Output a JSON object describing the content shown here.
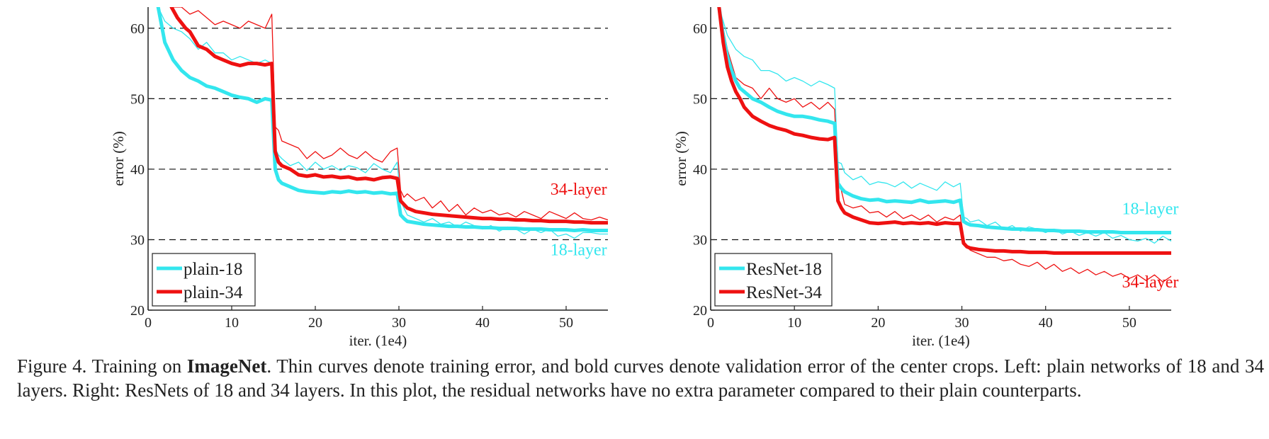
{
  "colors": {
    "cyan": "#33e6ee",
    "red": "#ee1111",
    "grid": "#111111"
  },
  "caption": {
    "figure_label": "Figure 4.",
    "part1": "Training on",
    "bold": "ImageNet",
    "rest": ". Thin curves denote training error, and bold curves denote validation error of the center crops. Left: plain networks of 18 and 34 layers. Right: ResNets of 18 and 34 layers. In this plot, the residual networks have no extra parameter compared to their plain counterparts."
  },
  "chart_data": [
    {
      "type": "line",
      "xlabel": "iter. (1e4)",
      "ylabel": "error (%)",
      "xlim": [
        0,
        55
      ],
      "ylim": [
        20,
        63
      ],
      "xticks": [
        0,
        10,
        20,
        30,
        40,
        50
      ],
      "yticks": [
        20,
        30,
        40,
        50,
        60
      ],
      "grid": "dashed horizontal",
      "legend": {
        "placement": "bottom-left",
        "entries": [
          "plain-18",
          "plain-34"
        ]
      },
      "annotations": [
        {
          "text": "34-layer",
          "x": 51.5,
          "y": 36.4,
          "color": "red"
        },
        {
          "text": "18-layer",
          "x": 51.5,
          "y": 27.8,
          "color": "cyan"
        }
      ],
      "series": [
        {
          "name": "plain-18",
          "kind": "validation",
          "color": "cyan",
          "width": 5,
          "x": [
            1.2,
            2,
            3,
            4,
            5,
            6,
            7,
            8,
            9,
            10,
            11,
            12,
            13,
            14,
            14.8,
            15.2,
            15.6,
            16,
            17,
            18,
            19,
            20,
            21,
            22,
            23,
            24,
            25,
            26,
            27,
            28,
            29,
            29.8,
            30.2,
            30.6,
            31,
            32,
            33,
            34,
            35,
            36,
            37,
            38,
            39,
            40,
            41,
            42,
            43,
            44,
            45,
            46,
            47,
            48,
            49,
            50,
            51,
            52,
            53,
            54,
            55
          ],
          "y": [
            63,
            58,
            55.5,
            54,
            53,
            52.5,
            51.8,
            51.5,
            51,
            50.5,
            50.2,
            50,
            49.5,
            50,
            49.8,
            40,
            38.5,
            38,
            37.5,
            37,
            36.8,
            36.7,
            36.6,
            36.8,
            36.7,
            36.9,
            36.7,
            36.8,
            36.6,
            36.7,
            36.5,
            36.6,
            33.5,
            33.0,
            32.6,
            32.4,
            32.2,
            32.1,
            32.0,
            31.9,
            31.9,
            31.8,
            31.8,
            31.7,
            31.7,
            31.6,
            31.6,
            31.6,
            31.5,
            31.5,
            31.5,
            31.4,
            31.4,
            31.4,
            31.3,
            31.4,
            31.3,
            31.3,
            31.3
          ]
        },
        {
          "name": "plain-34",
          "kind": "validation",
          "color": "red",
          "width": 5,
          "x": [
            2.8,
            3.5,
            4.5,
            5,
            6,
            7,
            8,
            9,
            10,
            11,
            12,
            13,
            14,
            14.8,
            15.2,
            15.6,
            16,
            17,
            18,
            19,
            20,
            21,
            22,
            23,
            24,
            25,
            26,
            27,
            28,
            29,
            29.8,
            30.2,
            30.6,
            31,
            32,
            33,
            34,
            35,
            36,
            37,
            38,
            39,
            40,
            41,
            42,
            43,
            44,
            45,
            46,
            47,
            48,
            49,
            50,
            51,
            52,
            53,
            54,
            55
          ],
          "y": [
            63,
            61.5,
            60,
            59.5,
            57.5,
            57,
            56,
            55.5,
            55,
            54.7,
            55,
            55,
            54.8,
            55,
            42.5,
            41,
            40.5,
            40,
            39.2,
            39.0,
            39.2,
            38.9,
            39.0,
            38.8,
            38.9,
            38.6,
            38.7,
            38.5,
            38.8,
            38.9,
            38.7,
            35.5,
            35.0,
            34.5,
            34.0,
            33.8,
            33.6,
            33.5,
            33.4,
            33.3,
            33.2,
            33.1,
            33.0,
            33.0,
            32.9,
            32.9,
            32.8,
            32.8,
            32.7,
            32.7,
            32.6,
            32.6,
            32.6,
            32.5,
            32.5,
            32.4,
            32.4,
            32.4
          ]
        },
        {
          "name": "plain-18",
          "kind": "training",
          "color": "cyan",
          "width": 1.3,
          "x": [
            1.2,
            2,
            3,
            4,
            5,
            6,
            7,
            8,
            9,
            10,
            11,
            12,
            13,
            14,
            14.8,
            15.2,
            15.6,
            16,
            17,
            18,
            19,
            20,
            21,
            22,
            23,
            24,
            25,
            26,
            27,
            28,
            29,
            29.8,
            30.2,
            30.6,
            31,
            32,
            33,
            34,
            35,
            36,
            37,
            38,
            39,
            40,
            41,
            42,
            43,
            44,
            45,
            46,
            47,
            48,
            49,
            50,
            51,
            52,
            53,
            54,
            55
          ],
          "y": [
            63,
            61,
            60,
            59.5,
            58.5,
            57,
            58,
            56.5,
            56.5,
            55.5,
            56,
            55.5,
            55,
            55.5,
            55,
            43,
            42,
            41.5,
            40.5,
            41,
            39.8,
            41,
            40,
            40.5,
            39.8,
            40.5,
            40.2,
            39.5,
            40.8,
            40,
            39.5,
            41,
            35.5,
            34.5,
            33.5,
            33,
            32.5,
            33,
            32.2,
            32.5,
            31.8,
            32.5,
            32,
            31.5,
            32,
            31.2,
            31.8,
            31.5,
            30.8,
            31.5,
            31,
            31.5,
            30.5,
            30.8,
            30.2,
            31,
            31,
            30.8,
            30.8
          ]
        },
        {
          "name": "plain-34",
          "kind": "training",
          "color": "red",
          "width": 1.3,
          "x": [
            3,
            4,
            5,
            6,
            7,
            8,
            9,
            10,
            11,
            12,
            13,
            14,
            14.8,
            15.2,
            15.6,
            16,
            17,
            18,
            19,
            20,
            21,
            22,
            23,
            24,
            25,
            26,
            27,
            28,
            29,
            29.8,
            30.2,
            30.6,
            31,
            32,
            33,
            34,
            35,
            36,
            37,
            38,
            39,
            40,
            41,
            42,
            43,
            44,
            45,
            46,
            47,
            48,
            49,
            50,
            51,
            52,
            53,
            54,
            55
          ],
          "y": [
            63,
            63,
            62,
            62.5,
            61.5,
            60.5,
            61,
            60.5,
            60,
            61,
            60.5,
            60,
            62,
            46,
            45.5,
            44,
            43.5,
            43,
            41.5,
            42.5,
            41.5,
            42,
            43,
            42,
            41.5,
            42.5,
            41.5,
            41,
            42.5,
            43,
            37,
            36,
            36.5,
            35.5,
            36,
            34.5,
            35.5,
            34,
            35,
            33.5,
            34.5,
            33.8,
            34.2,
            33.5,
            33.8,
            33.2,
            34,
            33.5,
            33,
            34,
            33.5,
            33,
            33.8,
            33,
            32.8,
            33.2,
            32.8
          ]
        }
      ]
    },
    {
      "type": "line",
      "xlabel": "iter. (1e4)",
      "ylabel": "error (%)",
      "xlim": [
        0,
        55
      ],
      "ylim": [
        20,
        63
      ],
      "xticks": [
        0,
        10,
        20,
        30,
        40,
        50
      ],
      "yticks": [
        20,
        30,
        40,
        50,
        60
      ],
      "grid": "dashed horizontal",
      "legend": {
        "placement": "bottom-left",
        "entries": [
          "ResNet-18",
          "ResNet-34"
        ]
      },
      "annotations": [
        {
          "text": "18-layer",
          "x": 52.5,
          "y": 33.6,
          "color": "cyan"
        },
        {
          "text": "34-layer",
          "x": 52.5,
          "y": 23.2,
          "color": "red"
        }
      ],
      "series": [
        {
          "name": "ResNet-18",
          "kind": "validation",
          "color": "cyan",
          "width": 5,
          "x": [
            1,
            1.5,
            2,
            2.5,
            3,
            3.5,
            4,
            5,
            6,
            7,
            8,
            9,
            10,
            11,
            12,
            13,
            14,
            14.8,
            15.2,
            15.6,
            16,
            17,
            18,
            19,
            20,
            21,
            22,
            23,
            24,
            25,
            26,
            27,
            28,
            29,
            29.8,
            30.2,
            30.6,
            31,
            32,
            33,
            34,
            35,
            36,
            37,
            38,
            39,
            40,
            41,
            42,
            43,
            44,
            45,
            46,
            47,
            48,
            49,
            50,
            51,
            52,
            53,
            54,
            55
          ],
          "y": [
            63,
            59,
            56,
            54,
            52.5,
            51.5,
            51,
            50,
            49.5,
            48.8,
            48.2,
            47.8,
            47.5,
            47.5,
            47.3,
            47,
            46.8,
            46.5,
            38,
            37.3,
            36.8,
            36.2,
            35.8,
            35.6,
            35.7,
            35.4,
            35.5,
            35.4,
            35.3,
            35.6,
            35.3,
            35.4,
            35.5,
            35.3,
            35.6,
            32.6,
            32.3,
            32.1,
            32,
            31.8,
            31.7,
            31.6,
            31.5,
            31.5,
            31.4,
            31.4,
            31.3,
            31.3,
            31.2,
            31.2,
            31.2,
            31.1,
            31.1,
            31.1,
            31.1,
            31,
            31,
            31,
            31,
            31,
            31,
            31
          ]
        },
        {
          "name": "ResNet-34",
          "kind": "validation",
          "color": "red",
          "width": 5,
          "x": [
            1,
            1.5,
            2,
            2.5,
            3,
            3.5,
            4,
            5,
            6,
            7,
            8,
            9,
            10,
            11,
            12,
            13,
            14,
            14.8,
            15.2,
            15.6,
            16,
            17,
            18,
            19,
            20,
            21,
            22,
            23,
            24,
            25,
            26,
            27,
            28,
            29,
            29.8,
            30.2,
            30.6,
            31,
            32,
            33,
            34,
            35,
            36,
            37,
            38,
            39,
            40,
            41,
            42,
            43,
            44,
            45,
            46,
            47,
            48,
            49,
            50,
            51,
            52,
            53,
            54,
            55
          ],
          "y": [
            63,
            58,
            54.5,
            52.5,
            51,
            50,
            48.8,
            47.5,
            46.8,
            46.2,
            45.8,
            45.5,
            45,
            44.8,
            44.5,
            44.3,
            44.2,
            44.5,
            35.5,
            34.5,
            33.8,
            33.2,
            32.8,
            32.4,
            32.3,
            32.4,
            32.5,
            32.3,
            32.4,
            32.3,
            32.4,
            32.2,
            32.4,
            32.3,
            32.3,
            29.5,
            29,
            28.8,
            28.6,
            28.5,
            28.4,
            28.4,
            28.3,
            28.3,
            28.2,
            28.2,
            28.2,
            28.1,
            28.1,
            28.1,
            28.1,
            28.1,
            28.1,
            28.1,
            28.1,
            28.1,
            28.1,
            28.1,
            28.1,
            28.1,
            28.1,
            28.1
          ]
        },
        {
          "name": "ResNet-18",
          "kind": "training",
          "color": "cyan",
          "width": 1.3,
          "x": [
            1,
            2,
            3,
            4,
            5,
            6,
            7,
            8,
            9,
            10,
            11,
            12,
            13,
            14,
            14.8,
            15.2,
            15.6,
            16,
            17,
            18,
            19,
            20,
            21,
            22,
            23,
            24,
            25,
            26,
            27,
            28,
            29,
            29.8,
            30.2,
            30.6,
            31,
            32,
            33,
            34,
            35,
            36,
            37,
            38,
            39,
            40,
            41,
            42,
            43,
            44,
            45,
            46,
            47,
            48,
            49,
            50,
            51,
            52,
            53,
            54,
            55
          ],
          "y": [
            63,
            59,
            57,
            56,
            55.5,
            54,
            54,
            53.5,
            52.5,
            53,
            52.5,
            51.8,
            52.5,
            52,
            51.5,
            41,
            40.8,
            39.5,
            38.5,
            39,
            37.8,
            38.2,
            38,
            37.5,
            38.2,
            37.3,
            38,
            37.5,
            37,
            38.2,
            37.5,
            38,
            33.2,
            33,
            32.5,
            32.8,
            32,
            32.5,
            31.5,
            32,
            31.2,
            31.8,
            31.5,
            31,
            31.5,
            30.8,
            31.2,
            30.6,
            31,
            30.5,
            31,
            30.2,
            30.6,
            30,
            29.8,
            30.2,
            29.5,
            30.5,
            29.8
          ]
        },
        {
          "name": "ResNet-34",
          "kind": "training",
          "color": "red",
          "width": 1.3,
          "x": [
            1,
            2,
            3,
            4,
            5,
            6,
            7,
            8,
            9,
            10,
            11,
            12,
            13,
            14,
            14.8,
            15.2,
            15.6,
            16,
            17,
            18,
            19,
            20,
            21,
            22,
            23,
            24,
            25,
            26,
            27,
            28,
            29,
            29.8,
            30.2,
            30.6,
            31,
            32,
            33,
            34,
            35,
            36,
            37,
            38,
            39,
            40,
            41,
            42,
            43,
            44,
            45,
            46,
            47,
            48,
            49,
            50,
            51,
            52,
            53,
            54,
            55
          ],
          "y": [
            63,
            57,
            53,
            52,
            51.5,
            50,
            51.5,
            50,
            49.5,
            50,
            48.8,
            49.5,
            48.5,
            49.5,
            48.5,
            38.5,
            37,
            35,
            34.5,
            34.8,
            33.8,
            34,
            33.2,
            34,
            33,
            33.5,
            32.8,
            33.5,
            32.5,
            33.2,
            32.8,
            33.5,
            29.5,
            29,
            28.5,
            28,
            27.5,
            27.5,
            27,
            27.2,
            26.5,
            26.2,
            26.8,
            25.8,
            26.5,
            25.5,
            26,
            25.2,
            25.8,
            25,
            25.5,
            24.8,
            25.2,
            24.5,
            25,
            24.2,
            25,
            24,
            24.8
          ]
        }
      ]
    }
  ]
}
